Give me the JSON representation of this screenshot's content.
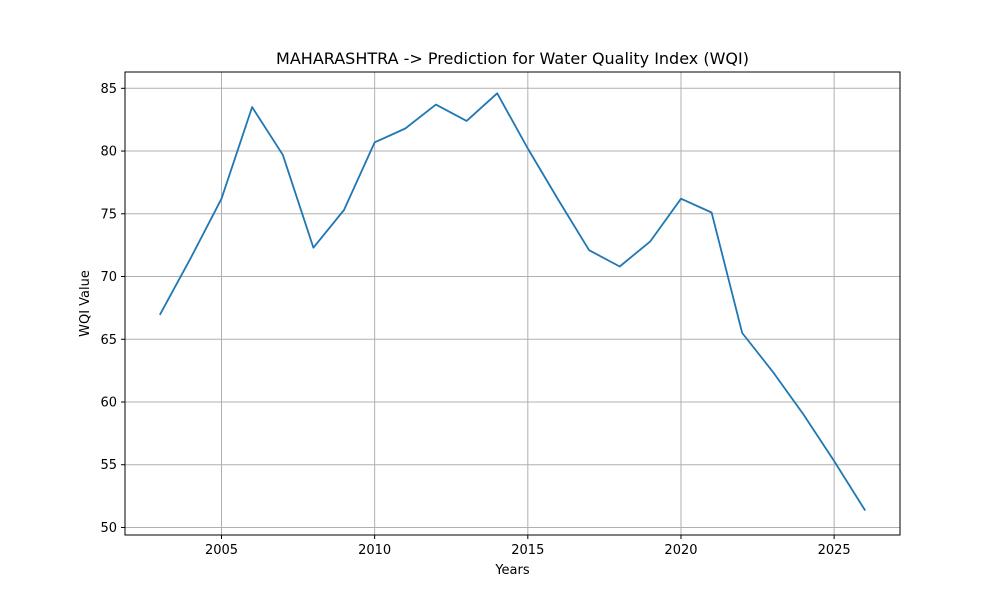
{
  "chart_data": {
    "type": "line",
    "title": "MAHARASHTRA -> Prediction for Water Quality Index (WQI)",
    "xlabel": "Years",
    "ylabel": "WQI Value",
    "xlim": [
      2001.85,
      2027.15
    ],
    "ylim": [
      49.4,
      86.3
    ],
    "xticks": [
      2005,
      2010,
      2015,
      2020,
      2025
    ],
    "yticks": [
      50,
      55,
      60,
      65,
      70,
      75,
      80,
      85
    ],
    "grid": true,
    "series": [
      {
        "color": "#1f77b4",
        "x": [
          2003,
          2004,
          2005,
          2006,
          2007,
          2008,
          2009,
          2010,
          2011,
          2012,
          2013,
          2014,
          2015,
          2016,
          2017,
          2018,
          2019,
          2020,
          2021,
          2022,
          2023,
          2024,
          2025,
          2026
        ],
        "values": [
          67.0,
          71.5,
          76.2,
          83.5,
          79.7,
          72.3,
          75.3,
          80.7,
          81.8,
          83.7,
          82.4,
          84.6,
          80.2,
          76.1,
          72.1,
          70.8,
          72.8,
          76.2,
          75.1,
          65.5,
          62.4,
          59.0,
          55.3,
          51.4
        ]
      }
    ]
  }
}
